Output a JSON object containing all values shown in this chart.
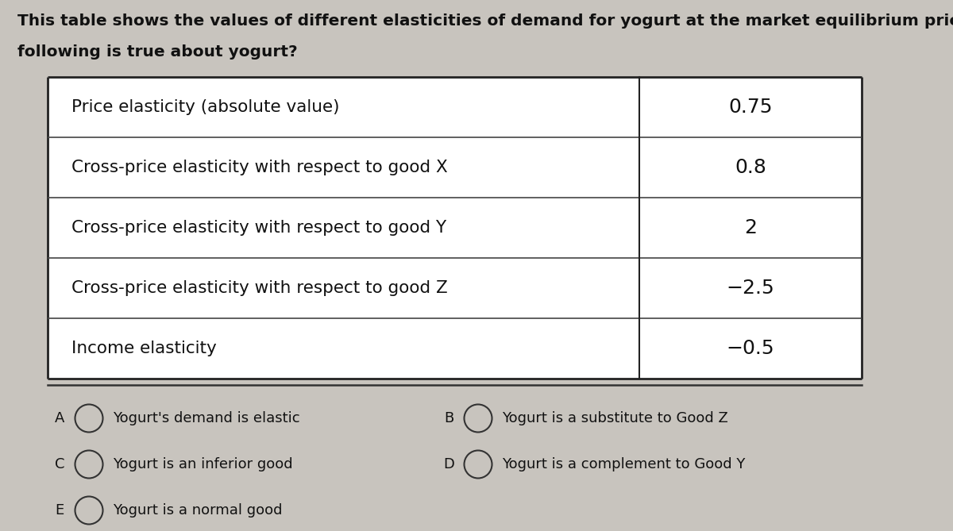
{
  "title_line1": "This table shows the values of different elasticities of demand for yogurt at the market equilibrium price.  Which of the",
  "title_line2": "following is true about yogurt?",
  "table_rows": [
    [
      "Price elasticity (absolute value)",
      "0.75"
    ],
    [
      "Cross-price elasticity with respect to good X",
      "0.8"
    ],
    [
      "Cross-price elasticity with respect to good Y",
      "2"
    ],
    [
      "Cross-price elasticity with respect to good Z",
      "−2.5"
    ],
    [
      "Income elasticity",
      "−0.5"
    ]
  ],
  "choices": [
    {
      "label": "A",
      "text": "Yogurt's demand is elastic",
      "col": 0,
      "row": 0
    },
    {
      "label": "C",
      "text": "Yogurt is an inferior good",
      "col": 0,
      "row": 1
    },
    {
      "label": "E",
      "text": "Yogurt is a normal good",
      "col": 0,
      "row": 2
    },
    {
      "label": "B",
      "text": "Yogurt is a substitute to Good Z",
      "col": 1,
      "row": 0
    },
    {
      "label": "D",
      "text": "Yogurt is a complement to Good Y",
      "col": 1,
      "row": 1
    }
  ],
  "bg_color": "#c8c4be",
  "table_bg": "#ffffff",
  "text_color": "#111111",
  "title_fontsize": 14.5,
  "table_label_fontsize": 15.5,
  "table_value_fontsize": 18,
  "choice_label_fontsize": 13,
  "choice_text_fontsize": 13
}
